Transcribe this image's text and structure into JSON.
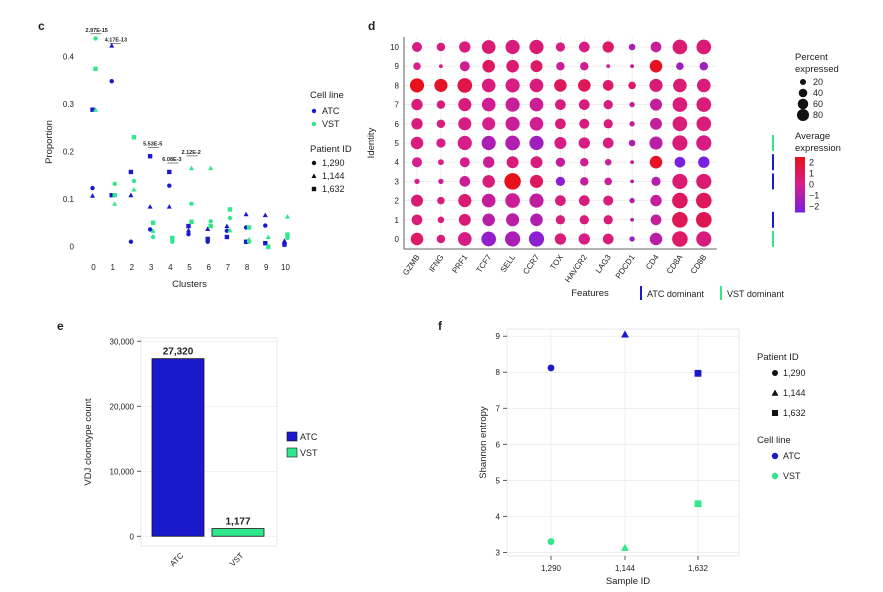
{
  "colors": {
    "ATC": "#1a1acc",
    "VST": "#2ee88a",
    "low": "#7a1fe0",
    "mid": "#d61e8c",
    "high": "#e8101a",
    "grid": "#e6e6e6",
    "axis": "#333333"
  },
  "panels": {
    "c": "c",
    "d": "d",
    "e": "e",
    "f": "f"
  },
  "chart_data": [
    {
      "panel": "c",
      "type": "scatter",
      "xlabel": "Clusters",
      "ylabel": "Proportion",
      "xlim": [
        -0.6,
        10.6
      ],
      "ylim": [
        -0.02,
        0.46
      ],
      "xticks": [
        0,
        1,
        2,
        3,
        4,
        5,
        6,
        7,
        8,
        9,
        10
      ],
      "yticks": [
        0,
        0.1,
        0.2,
        0.3,
        0.4
      ],
      "ytick_labels": [
        "0",
        "0.1",
        "0.2",
        "0.3",
        "0.4"
      ],
      "legend": {
        "cell_line_title": "Cell line",
        "cell_lines": [
          {
            "label": "ATC",
            "key": "ATC"
          },
          {
            "label": "VST",
            "key": "VST"
          }
        ],
        "patient_title": "Patient ID",
        "patients": [
          {
            "label": "1,290",
            "shape": "circle"
          },
          {
            "label": "1,144",
            "shape": "triangle"
          },
          {
            "label": "1,632",
            "shape": "square"
          }
        ]
      },
      "points": [
        {
          "x": 0,
          "y": 0.123,
          "c": "ATC",
          "s": "circle"
        },
        {
          "x": 0,
          "y": 0.107,
          "c": "ATC",
          "s": "triangle"
        },
        {
          "x": 0,
          "y": 0.288,
          "c": "ATC",
          "s": "square"
        },
        {
          "x": 0,
          "y": 0.438,
          "c": "VST",
          "s": "circle"
        },
        {
          "x": 0,
          "y": 0.288,
          "c": "VST",
          "s": "triangle"
        },
        {
          "x": 0,
          "y": 0.374,
          "c": "VST",
          "s": "square"
        },
        {
          "x": 1,
          "y": 0.348,
          "c": "ATC",
          "s": "circle"
        },
        {
          "x": 1,
          "y": 0.423,
          "c": "ATC",
          "s": "triangle"
        },
        {
          "x": 1,
          "y": 0.108,
          "c": "ATC",
          "s": "square"
        },
        {
          "x": 1,
          "y": 0.132,
          "c": "VST",
          "s": "circle"
        },
        {
          "x": 1,
          "y": 0.09,
          "c": "VST",
          "s": "triangle"
        },
        {
          "x": 1,
          "y": 0.108,
          "c": "VST",
          "s": "square"
        },
        {
          "x": 2,
          "y": 0.01,
          "c": "ATC",
          "s": "circle"
        },
        {
          "x": 2,
          "y": 0.108,
          "c": "ATC",
          "s": "triangle"
        },
        {
          "x": 2,
          "y": 0.157,
          "c": "ATC",
          "s": "square"
        },
        {
          "x": 2,
          "y": 0.138,
          "c": "VST",
          "s": "circle"
        },
        {
          "x": 2,
          "y": 0.12,
          "c": "VST",
          "s": "triangle"
        },
        {
          "x": 2,
          "y": 0.23,
          "c": "VST",
          "s": "square"
        },
        {
          "x": 3,
          "y": 0.036,
          "c": "ATC",
          "s": "circle"
        },
        {
          "x": 3,
          "y": 0.084,
          "c": "ATC",
          "s": "triangle"
        },
        {
          "x": 3,
          "y": 0.19,
          "c": "ATC",
          "s": "square"
        },
        {
          "x": 3,
          "y": 0.02,
          "c": "VST",
          "s": "circle"
        },
        {
          "x": 3,
          "y": 0.033,
          "c": "VST",
          "s": "triangle"
        },
        {
          "x": 3,
          "y": 0.05,
          "c": "VST",
          "s": "square"
        },
        {
          "x": 4,
          "y": 0.128,
          "c": "ATC",
          "s": "circle"
        },
        {
          "x": 4,
          "y": 0.084,
          "c": "ATC",
          "s": "triangle"
        },
        {
          "x": 4,
          "y": 0.157,
          "c": "ATC",
          "s": "square"
        },
        {
          "x": 4,
          "y": 0.01,
          "c": "VST",
          "s": "circle"
        },
        {
          "x": 4,
          "y": 0.015,
          "c": "VST",
          "s": "triangle"
        },
        {
          "x": 4,
          "y": 0.018,
          "c": "VST",
          "s": "square"
        },
        {
          "x": 5,
          "y": 0.026,
          "c": "ATC",
          "s": "circle"
        },
        {
          "x": 5,
          "y": 0.034,
          "c": "ATC",
          "s": "triangle"
        },
        {
          "x": 5,
          "y": 0.043,
          "c": "ATC",
          "s": "square"
        },
        {
          "x": 5,
          "y": 0.09,
          "c": "VST",
          "s": "circle"
        },
        {
          "x": 5,
          "y": 0.165,
          "c": "VST",
          "s": "triangle"
        },
        {
          "x": 5,
          "y": 0.052,
          "c": "VST",
          "s": "square"
        },
        {
          "x": 6,
          "y": 0.01,
          "c": "ATC",
          "s": "circle"
        },
        {
          "x": 6,
          "y": 0.037,
          "c": "ATC",
          "s": "triangle"
        },
        {
          "x": 6,
          "y": 0.016,
          "c": "ATC",
          "s": "square"
        },
        {
          "x": 6,
          "y": 0.053,
          "c": "VST",
          "s": "circle"
        },
        {
          "x": 6,
          "y": 0.165,
          "c": "VST",
          "s": "triangle"
        },
        {
          "x": 6,
          "y": 0.043,
          "c": "VST",
          "s": "square"
        },
        {
          "x": 7,
          "y": 0.033,
          "c": "ATC",
          "s": "circle"
        },
        {
          "x": 7,
          "y": 0.043,
          "c": "ATC",
          "s": "triangle"
        },
        {
          "x": 7,
          "y": 0.02,
          "c": "ATC",
          "s": "square"
        },
        {
          "x": 7,
          "y": 0.06,
          "c": "VST",
          "s": "circle"
        },
        {
          "x": 7,
          "y": 0.034,
          "c": "VST",
          "s": "triangle"
        },
        {
          "x": 7,
          "y": 0.078,
          "c": "VST",
          "s": "square"
        },
        {
          "x": 8,
          "y": 0.04,
          "c": "ATC",
          "s": "circle"
        },
        {
          "x": 8,
          "y": 0.068,
          "c": "ATC",
          "s": "triangle"
        },
        {
          "x": 8,
          "y": 0.01,
          "c": "ATC",
          "s": "square"
        },
        {
          "x": 8,
          "y": 0.01,
          "c": "VST",
          "s": "circle"
        },
        {
          "x": 8,
          "y": 0.015,
          "c": "VST",
          "s": "triangle"
        },
        {
          "x": 8,
          "y": 0.04,
          "c": "VST",
          "s": "square"
        },
        {
          "x": 9,
          "y": 0.044,
          "c": "ATC",
          "s": "circle"
        },
        {
          "x": 9,
          "y": 0.066,
          "c": "ATC",
          "s": "triangle"
        },
        {
          "x": 9,
          "y": 0.007,
          "c": "ATC",
          "s": "square"
        },
        {
          "x": 9,
          "y": 0.0,
          "c": "VST",
          "s": "circle"
        },
        {
          "x": 9,
          "y": 0.02,
          "c": "VST",
          "s": "triangle"
        },
        {
          "x": 9,
          "y": -0.001,
          "c": "VST",
          "s": "square"
        },
        {
          "x": 10,
          "y": 0.006,
          "c": "ATC",
          "s": "circle"
        },
        {
          "x": 10,
          "y": 0.012,
          "c": "ATC",
          "s": "triangle"
        },
        {
          "x": 10,
          "y": 0.004,
          "c": "ATC",
          "s": "square"
        },
        {
          "x": 10,
          "y": 0.018,
          "c": "VST",
          "s": "circle"
        },
        {
          "x": 10,
          "y": 0.063,
          "c": "VST",
          "s": "triangle"
        },
        {
          "x": 10,
          "y": 0.025,
          "c": "VST",
          "s": "square"
        }
      ],
      "pvalues": [
        {
          "cluster": 0,
          "y": 0.452,
          "label": "2.97E-15"
        },
        {
          "cluster": 1,
          "y": 0.432,
          "label": "4.17E-13"
        },
        {
          "cluster": 3,
          "y": 0.213,
          "label": "5.53E-5"
        },
        {
          "cluster": 4,
          "y": 0.18,
          "label": "6.08E-3"
        },
        {
          "cluster": 5,
          "y": 0.195,
          "label": "2.12E-2"
        }
      ]
    },
    {
      "panel": "d",
      "type": "dotplot",
      "xlabel": "Features",
      "ylabel": "Identity",
      "features": [
        "GZMB",
        "IFNG",
        "PRF1",
        "TCF7",
        "SELL",
        "CCR7",
        "TOX",
        "HAVCR2",
        "LAG3",
        "PDCD1",
        "CD4",
        "CD8A",
        "CD8B"
      ],
      "identities": [
        0,
        1,
        2,
        3,
        4,
        5,
        6,
        7,
        8,
        9,
        10
      ],
      "pct": [
        [
          55,
          25,
          65,
          75,
          80,
          80,
          45,
          45,
          40,
          10,
          55,
          85,
          80
        ],
        [
          40,
          15,
          50,
          55,
          60,
          55,
          30,
          30,
          30,
          5,
          40,
          85,
          85
        ],
        [
          50,
          20,
          60,
          65,
          75,
          70,
          40,
          40,
          35,
          10,
          45,
          85,
          85
        ],
        [
          10,
          10,
          40,
          55,
          95,
          60,
          30,
          25,
          20,
          5,
          30,
          80,
          80
        ],
        [
          35,
          12,
          35,
          45,
          50,
          50,
          30,
          25,
          15,
          5,
          55,
          40,
          45
        ],
        [
          55,
          30,
          70,
          70,
          75,
          70,
          50,
          45,
          40,
          15,
          60,
          80,
          80
        ],
        [
          45,
          25,
          60,
          60,
          70,
          65,
          40,
          35,
          30,
          10,
          50,
          75,
          75
        ],
        [
          45,
          25,
          60,
          65,
          70,
          65,
          40,
          40,
          30,
          10,
          50,
          75,
          75
        ],
        [
          70,
          60,
          75,
          65,
          70,
          65,
          55,
          55,
          40,
          20,
          60,
          65,
          65
        ],
        [
          20,
          5,
          35,
          55,
          55,
          50,
          25,
          25,
          5,
          5,
          55,
          20,
          25
        ],
        [
          35,
          25,
          45,
          65,
          70,
          70,
          30,
          40,
          45,
          15,
          40,
          75,
          75
        ]
      ],
      "avg": [
        [
          0.8,
          0.3,
          0.2,
          -1.8,
          -1.2,
          -2.0,
          0.4,
          0.2,
          0.4,
          -1.5,
          -0.8,
          0.8,
          0.3
        ],
        [
          0.5,
          0.3,
          0.5,
          -0.8,
          -0.8,
          -1.0,
          0.3,
          0.3,
          0.4,
          -1.0,
          -0.5,
          1.2,
          1.3
        ],
        [
          0.5,
          0.3,
          0.6,
          -0.5,
          -0.3,
          -0.6,
          0.3,
          0.3,
          0.4,
          -1.0,
          -0.5,
          1.0,
          1.1
        ],
        [
          0.0,
          -0.3,
          -0.3,
          0.3,
          2.5,
          1.0,
          -2.0,
          -0.5,
          -0.3,
          -1.0,
          -0.8,
          0.6,
          0.6
        ],
        [
          0.0,
          0.0,
          0.0,
          -0.3,
          0.4,
          0.3,
          -0.5,
          -0.2,
          -0.3,
          -0.5,
          2.2,
          -2.5,
          -2.5
        ],
        [
          0.3,
          0.1,
          0.1,
          -1.2,
          -1.0,
          -1.5,
          0.2,
          0.2,
          0.2,
          -1.0,
          -0.8,
          0.4,
          0.2
        ],
        [
          0.3,
          0.3,
          0.2,
          0.0,
          -0.3,
          -0.2,
          0.3,
          0.3,
          0.3,
          -0.5,
          -0.5,
          0.4,
          0.4
        ],
        [
          0.4,
          0.3,
          0.3,
          -0.2,
          -0.4,
          -0.3,
          0.3,
          0.3,
          0.3,
          -0.5,
          -0.5,
          0.4,
          0.4
        ],
        [
          2.5,
          2.2,
          1.5,
          0.3,
          0.2,
          0.3,
          1.0,
          1.2,
          0.8,
          0.8,
          0.5,
          0.5,
          0.4
        ],
        [
          0.0,
          0.0,
          -0.2,
          1.0,
          0.6,
          0.9,
          -0.3,
          -0.2,
          0.0,
          -0.8,
          2.4,
          -1.5,
          -1.5
        ],
        [
          0.2,
          0.3,
          0.3,
          0.5,
          0.3,
          0.5,
          0.2,
          0.2,
          0.8,
          -1.2,
          -0.5,
          0.5,
          0.5
        ]
      ],
      "dominance": [
        {
          "identity": 5,
          "group": "VST"
        },
        {
          "identity": 4,
          "group": "ATC"
        },
        {
          "identity": 3,
          "group": "ATC"
        },
        {
          "identity": 1,
          "group": "ATC"
        },
        {
          "identity": 0,
          "group": "VST"
        }
      ],
      "size_legend": {
        "title1": "Percent",
        "title2": "expressed",
        "values": [
          20,
          40,
          60,
          80
        ]
      },
      "color_legend": {
        "title1": "Average",
        "title2": "expression",
        "range": [
          -2.5,
          2.5
        ],
        "ticks": [
          2,
          1,
          0,
          -1,
          -2
        ],
        "tick_labels": [
          "2",
          "1",
          "0",
          "−1",
          "−2"
        ]
      },
      "dominance_legend": [
        {
          "key": "ATC",
          "label": "ATC dominant"
        },
        {
          "key": "VST",
          "label": "VST dominant"
        }
      ]
    },
    {
      "panel": "e",
      "type": "bar",
      "ylabel": "VDJ clonotype count",
      "categories": [
        "ATC",
        "VST"
      ],
      "values": [
        27320,
        1177
      ],
      "value_labels": [
        "27,320",
        "1,177"
      ],
      "ylim": [
        -1500,
        30500
      ],
      "yticks": [
        0,
        10000,
        20000,
        30000
      ],
      "ytick_labels": [
        "0",
        "10,000",
        "20,000",
        "30,000"
      ],
      "legend": [
        {
          "label": "ATC",
          "key": "ATC"
        },
        {
          "label": "VST",
          "key": "VST"
        }
      ]
    },
    {
      "panel": "f",
      "type": "scatter",
      "xlabel": "Sample ID",
      "ylabel": "Shannon entropy",
      "categories": [
        "1,290",
        "1,144",
        "1,632"
      ],
      "ylim": [
        2.9,
        9.2
      ],
      "yticks": [
        3,
        4,
        5,
        6,
        7,
        8,
        9
      ],
      "ytick_labels": [
        "3",
        "4",
        "5",
        "6",
        "7",
        "8",
        "9"
      ],
      "points": [
        {
          "x": 0,
          "y": 8.12,
          "c": "ATC",
          "s": "circle"
        },
        {
          "x": 1,
          "y": 9.05,
          "c": "ATC",
          "s": "triangle"
        },
        {
          "x": 2,
          "y": 7.97,
          "c": "ATC",
          "s": "square"
        },
        {
          "x": 0,
          "y": 3.3,
          "c": "VST",
          "s": "circle"
        },
        {
          "x": 1,
          "y": 3.13,
          "c": "VST",
          "s": "triangle"
        },
        {
          "x": 2,
          "y": 4.35,
          "c": "VST",
          "s": "square"
        }
      ],
      "legend": {
        "patient_title": "Patient ID",
        "patients": [
          {
            "label": "1,290",
            "shape": "circle"
          },
          {
            "label": "1,144",
            "shape": "triangle"
          },
          {
            "label": "1,632",
            "shape": "square"
          }
        ],
        "cell_line_title": "Cell line",
        "cell_lines": [
          {
            "label": "ATC",
            "key": "ATC"
          },
          {
            "label": "VST",
            "key": "VST"
          }
        ]
      }
    }
  ]
}
